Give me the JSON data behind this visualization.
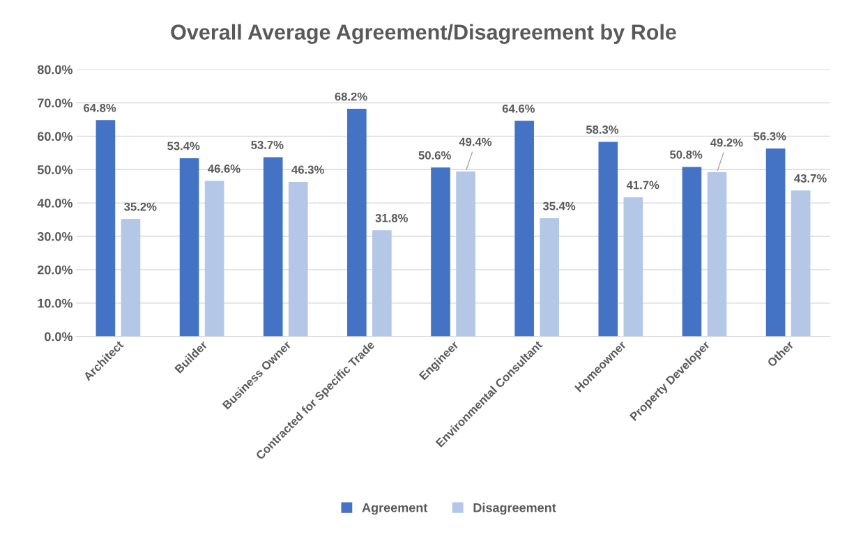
{
  "chart_data": {
    "type": "bar",
    "title": "Overall Average Agreement/Disagreement by Role",
    "categories": [
      "Architect",
      "Builder",
      "Business Owner",
      "Contracted for Specific Trade",
      "Engineer",
      "Environmental Consultant",
      "Homeowner",
      "Property Developer",
      "Other"
    ],
    "series": [
      {
        "name": "Agreement",
        "color": "#4472c4",
        "values": [
          64.8,
          53.4,
          53.7,
          68.2,
          50.6,
          64.6,
          58.3,
          50.8,
          56.3
        ],
        "value_labels": [
          "64.8%",
          "53.4%",
          "53.7%",
          "68.2%",
          "50.6%",
          "64.6%",
          "58.3%",
          "50.8%",
          "56.3%"
        ]
      },
      {
        "name": "Disagreement",
        "color": "#b4c7e7",
        "values": [
          35.2,
          46.6,
          46.3,
          31.8,
          49.4,
          35.4,
          41.7,
          49.2,
          43.7
        ],
        "value_labels": [
          "35.2%",
          "46.6%",
          "46.3%",
          "31.8%",
          "49.4%",
          "35.4%",
          "41.7%",
          "49.2%",
          "43.7%"
        ]
      }
    ],
    "ylim": [
      0,
      80
    ],
    "yticks": [
      {
        "value": 0,
        "label": "0.0%"
      },
      {
        "value": 10,
        "label": "10.0%"
      },
      {
        "value": 20,
        "label": "20.0%"
      },
      {
        "value": 30,
        "label": "30.0%"
      },
      {
        "value": 40,
        "label": "40.0%"
      },
      {
        "value": 50,
        "label": "50.0%"
      },
      {
        "value": 60,
        "label": "60.0%"
      },
      {
        "value": 70,
        "label": "70.0%"
      },
      {
        "value": 80,
        "label": "80.0%"
      }
    ],
    "grid": "y",
    "legend": "bottom"
  }
}
